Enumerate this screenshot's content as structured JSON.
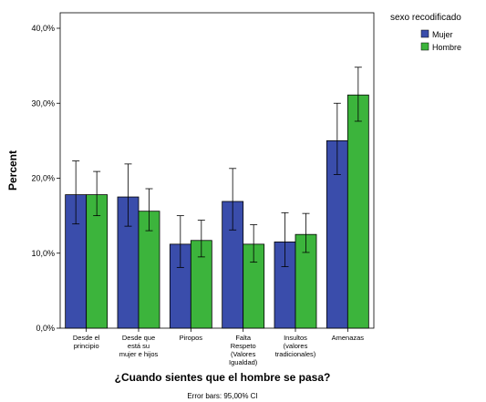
{
  "chart_data": {
    "type": "bar",
    "title": "",
    "xlabel": "¿Cuando sientes que el hombre se pasa?",
    "ylabel": "Percent",
    "note": "Error bars: 95,00% CI",
    "ylim": [
      0,
      0.42
    ],
    "yticks": [
      {
        "value": 0.0,
        "label": "0,0%"
      },
      {
        "value": 0.1,
        "label": "10,0%"
      },
      {
        "value": 0.2,
        "label": "20,0%"
      },
      {
        "value": 0.3,
        "label": "30,0%"
      },
      {
        "value": 0.4,
        "label": "40,0%"
      }
    ],
    "categories": [
      [
        "Desde el",
        "principio"
      ],
      [
        "Desde que",
        "está su",
        "mujer e hijos"
      ],
      [
        "Piropos"
      ],
      [
        "Falta",
        "Respeto",
        "(Valores",
        "Igualdad)"
      ],
      [
        "Insultos",
        "(valores",
        "tradicionales)"
      ],
      [
        "Amenazas"
      ]
    ],
    "legend": {
      "title": "sexo recodificado",
      "position": "top-right"
    },
    "grid": false,
    "series": [
      {
        "name": "Mujer",
        "color": "#3a4dab",
        "values": [
          0.178,
          0.175,
          0.112,
          0.169,
          0.115,
          0.25
        ],
        "ci_low": [
          0.139,
          0.136,
          0.081,
          0.131,
          0.082,
          0.205
        ],
        "ci_high": [
          0.223,
          0.219,
          0.15,
          0.213,
          0.154,
          0.3
        ]
      },
      {
        "name": "Hombre",
        "color": "#3cb43c",
        "values": [
          0.178,
          0.156,
          0.117,
          0.112,
          0.125,
          0.311
        ],
        "ci_low": [
          0.15,
          0.13,
          0.095,
          0.088,
          0.101,
          0.276
        ],
        "ci_high": [
          0.209,
          0.186,
          0.144,
          0.138,
          0.153,
          0.348
        ]
      }
    ]
  }
}
